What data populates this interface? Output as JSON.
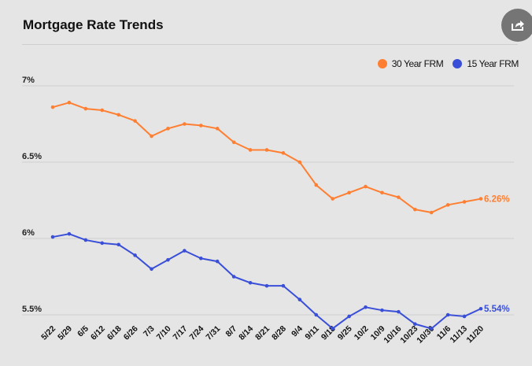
{
  "header": {
    "title": "Mortgage Rate Trends",
    "share_icon": "share-icon"
  },
  "legend": [
    {
      "label": "30 Year FRM",
      "color": "#ff7f32"
    },
    {
      "label": "15 Year FRM",
      "color": "#3a4fd8"
    }
  ],
  "chart_data": {
    "type": "line",
    "title": "Mortgage Rate Trends",
    "xlabel": "",
    "ylabel": "",
    "ylim": [
      5.5,
      7
    ],
    "yticks": [
      7,
      6.5,
      6,
      5.5
    ],
    "ytick_labels": [
      "7%",
      "6.5%",
      "6%",
      "5.5%"
    ],
    "grid": true,
    "legend_position": "top-right",
    "x": [
      "5/22",
      "5/29",
      "6/5",
      "6/12",
      "6/18",
      "6/26",
      "7/3",
      "7/10",
      "7/17",
      "7/24",
      "7/31",
      "8/7",
      "8/14",
      "8/21",
      "8/28",
      "9/4",
      "9/11",
      "9/18",
      "9/25",
      "10/2",
      "10/9",
      "10/16",
      "10/23",
      "10/30",
      "11/6",
      "11/13",
      "11/20"
    ],
    "series": [
      {
        "name": "30 Year FRM",
        "color": "#ff7f32",
        "end_label": "6.26%",
        "values": [
          6.86,
          6.89,
          6.85,
          6.84,
          6.81,
          6.77,
          6.67,
          6.72,
          6.75,
          6.74,
          6.72,
          6.63,
          6.58,
          6.58,
          6.56,
          6.5,
          6.35,
          6.26,
          6.3,
          6.34,
          6.3,
          6.27,
          6.19,
          6.17,
          6.22,
          6.24,
          6.26
        ]
      },
      {
        "name": "15 Year FRM",
        "color": "#3a4fd8",
        "end_label": "5.54%",
        "values": [
          6.01,
          6.03,
          5.99,
          5.97,
          5.96,
          5.89,
          5.8,
          5.86,
          5.92,
          5.87,
          5.85,
          5.75,
          5.71,
          5.69,
          5.69,
          5.6,
          5.5,
          5.41,
          5.49,
          5.55,
          5.53,
          5.52,
          5.44,
          5.41,
          5.5,
          5.49,
          5.54
        ]
      }
    ]
  }
}
